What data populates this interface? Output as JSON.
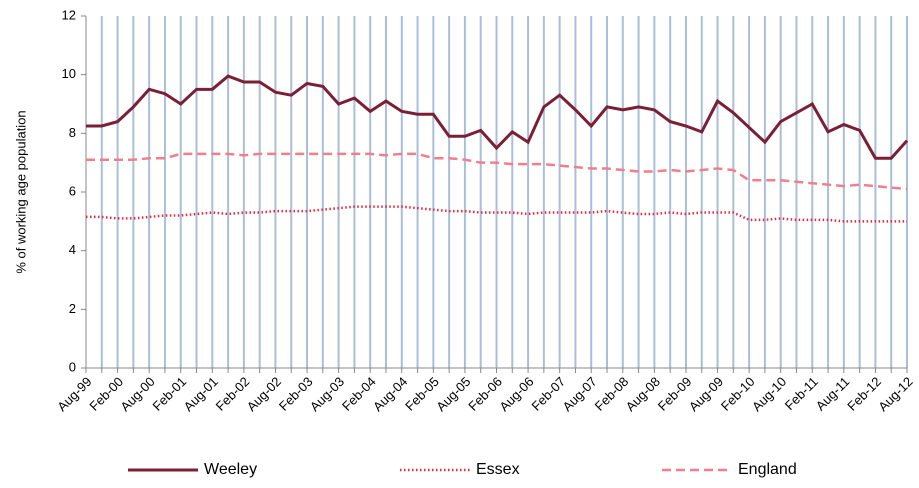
{
  "chart_data": {
    "type": "line",
    "ylabel": "% of working age population",
    "categories": [
      "Aug-99",
      null,
      "Feb-00",
      null,
      "Aug-00",
      null,
      "Feb-01",
      null,
      "Aug-01",
      null,
      "Feb-02",
      null,
      "Aug-02",
      null,
      "Feb-03",
      null,
      "Aug-03",
      null,
      "Feb-04",
      null,
      "Aug-04",
      null,
      "Feb-05",
      null,
      "Aug-05",
      null,
      "Feb-06",
      null,
      "Aug-06",
      null,
      "Feb-07",
      null,
      "Aug-07",
      null,
      "Feb-08",
      null,
      "Aug-08",
      null,
      "Feb-09",
      null,
      "Aug-09",
      null,
      "Feb-10",
      null,
      "Aug-10",
      null,
      "Feb-11",
      null,
      "Aug-11",
      null,
      "Feb-12",
      null,
      "Aug-12"
    ],
    "series": [
      {
        "name": "Weeley",
        "color": "#7b1f35",
        "style": "solid",
        "values": [
          8.25,
          8.25,
          8.4,
          8.9,
          9.5,
          9.35,
          9.0,
          9.5,
          9.5,
          9.95,
          9.75,
          9.75,
          9.4,
          9.3,
          9.7,
          9.6,
          9.0,
          9.2,
          8.75,
          9.1,
          8.75,
          8.65,
          8.65,
          7.9,
          7.9,
          8.1,
          7.5,
          8.05,
          7.7,
          8.9,
          9.3,
          8.8,
          8.25,
          8.9,
          8.8,
          8.9,
          8.8,
          8.4,
          8.25,
          8.05,
          9.1,
          8.7,
          8.2,
          7.7,
          8.4,
          8.7,
          9.0,
          8.05,
          8.3,
          8.1,
          7.15,
          7.15,
          7.75
        ]
      },
      {
        "name": "Essex",
        "color": "#e8283a",
        "style": "dotted",
        "values": [
          5.15,
          5.15,
          5.1,
          5.1,
          5.15,
          5.2,
          5.2,
          5.25,
          5.3,
          5.25,
          5.3,
          5.3,
          5.35,
          5.35,
          5.35,
          5.4,
          5.45,
          5.5,
          5.5,
          5.5,
          5.5,
          5.45,
          5.4,
          5.35,
          5.35,
          5.3,
          5.3,
          5.3,
          5.25,
          5.3,
          5.3,
          5.3,
          5.3,
          5.35,
          5.3,
          5.25,
          5.25,
          5.3,
          5.25,
          5.3,
          5.3,
          5.3,
          5.05,
          5.05,
          5.1,
          5.05,
          5.05,
          5.05,
          5.0,
          5.0,
          5.0,
          5.0,
          5.0
        ]
      },
      {
        "name": "England",
        "color": "#f07f8a",
        "style": "dashed",
        "values": [
          7.1,
          7.1,
          7.1,
          7.1,
          7.15,
          7.15,
          7.3,
          7.3,
          7.3,
          7.3,
          7.25,
          7.3,
          7.3,
          7.3,
          7.3,
          7.3,
          7.3,
          7.3,
          7.3,
          7.25,
          7.3,
          7.3,
          7.15,
          7.15,
          7.1,
          7.0,
          7.0,
          6.95,
          6.95,
          6.95,
          6.9,
          6.85,
          6.8,
          6.8,
          6.75,
          6.7,
          6.7,
          6.75,
          6.7,
          6.75,
          6.8,
          6.75,
          6.4,
          6.4,
          6.4,
          6.35,
          6.3,
          6.25,
          6.2,
          6.25,
          6.2,
          6.15,
          6.1
        ]
      }
    ],
    "ylim": [
      0,
      12
    ],
    "yticks": [
      0,
      2,
      4,
      6,
      8,
      10,
      12
    ],
    "grid": "x",
    "grid_color": "#a9bfd9",
    "legend": "bottom"
  }
}
